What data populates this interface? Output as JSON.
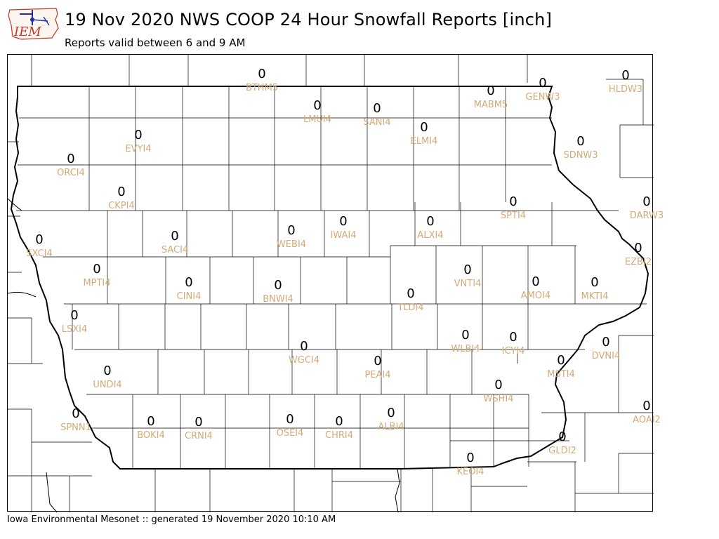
{
  "header": {
    "title": "19 Nov 2020 NWS COOP 24 Hour Snowfall Reports [inch]",
    "subtitle": "Reports valid between 6 and 9 AM",
    "logo_text": "IEM"
  },
  "footer": {
    "text": "Iowa Environmental Mesonet :: generated 19 November 2020 10:10 AM"
  },
  "colors": {
    "station_label": "#d4aa78",
    "value": "#000000",
    "county_line": "#000000",
    "logo_text": "#c0392b",
    "logo_blue": "#1f2fa8"
  },
  "stations": [
    {
      "id": "BTHM5",
      "value": "0"
    },
    {
      "id": "GENW3",
      "value": "0"
    },
    {
      "id": "MABM5",
      "value": "0"
    },
    {
      "id": "HLDW3",
      "value": "0"
    },
    {
      "id": "LMUI4",
      "value": "0"
    },
    {
      "id": "SANI4",
      "value": "0"
    },
    {
      "id": "ELMI4",
      "value": "0"
    },
    {
      "id": "EVYI4",
      "value": "0"
    },
    {
      "id": "SDNW3",
      "value": "0"
    },
    {
      "id": "ORCI4",
      "value": "0"
    },
    {
      "id": "CKPI4",
      "value": "0"
    },
    {
      "id": "SPTI4",
      "value": "0"
    },
    {
      "id": "DARW3",
      "value": "0"
    },
    {
      "id": "SXCI4",
      "value": "0"
    },
    {
      "id": "SACI4",
      "value": "0"
    },
    {
      "id": "WEBI4",
      "value": "0"
    },
    {
      "id": "IWAI4",
      "value": "0"
    },
    {
      "id": "ALXI4",
      "value": "0"
    },
    {
      "id": "EZBI2",
      "value": "0"
    },
    {
      "id": "MPTI4",
      "value": "0"
    },
    {
      "id": "CINI4",
      "value": "0"
    },
    {
      "id": "BNWI4",
      "value": "0"
    },
    {
      "id": "VNTI4",
      "value": "0"
    },
    {
      "id": "AMOI4",
      "value": "0"
    },
    {
      "id": "MKTI4",
      "value": "0"
    },
    {
      "id": "TLDI4",
      "value": "0"
    },
    {
      "id": "LSXI4",
      "value": "0"
    },
    {
      "id": "WLBI4",
      "value": "0"
    },
    {
      "id": "ICYI4",
      "value": "0"
    },
    {
      "id": "DVNI4",
      "value": "0"
    },
    {
      "id": "WGCI4",
      "value": "0"
    },
    {
      "id": "PEAI4",
      "value": "0"
    },
    {
      "id": "MSTI4",
      "value": "0"
    },
    {
      "id": "UNDI4",
      "value": "0"
    },
    {
      "id": "WSHI4",
      "value": "0"
    },
    {
      "id": "AOAI2",
      "value": "0"
    },
    {
      "id": "SPNN1",
      "value": "0"
    },
    {
      "id": "BOKI4",
      "value": "0"
    },
    {
      "id": "CRNI4",
      "value": "0"
    },
    {
      "id": "OSEI4",
      "value": "0"
    },
    {
      "id": "CHRI4",
      "value": "0"
    },
    {
      "id": "ALBI4",
      "value": "0"
    },
    {
      "id": "GLDI2",
      "value": "0"
    },
    {
      "id": "KEOI4",
      "value": "0"
    }
  ]
}
